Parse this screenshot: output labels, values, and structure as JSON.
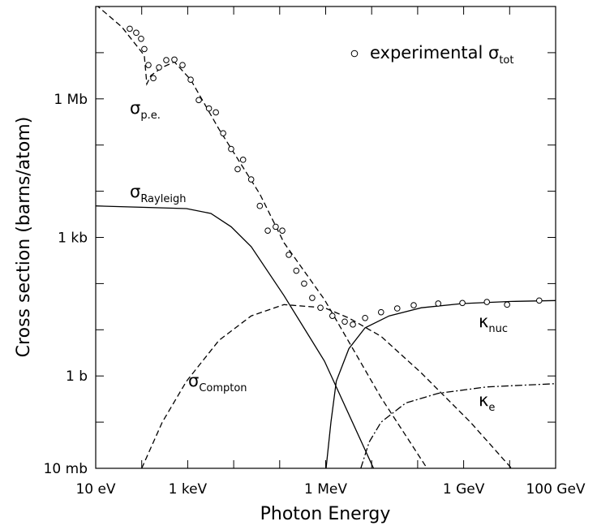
{
  "chart_data": {
    "type": "line",
    "xlabel": "Photon Energy",
    "ylabel": "Cross section (barns/atom)",
    "xscale": "log",
    "yscale": "log",
    "xlim": [
      10,
      100000000000
    ],
    "ylim": [
      0.01,
      100000000
    ],
    "xticks": [
      {
        "value": 10,
        "label": "10 eV"
      },
      {
        "value": 1000,
        "label": "1 keV"
      },
      {
        "value": 1000000,
        "label": "1 MeV"
      },
      {
        "value": 1000000000,
        "label": "1 GeV"
      },
      {
        "value": 100000000000,
        "label": "100 GeV"
      }
    ],
    "xminorticks": [
      100,
      10000,
      100000,
      10000000,
      100000000,
      10000000000
    ],
    "yticks": [
      {
        "value": 0.01,
        "label": "10 mb"
      },
      {
        "value": 1,
        "label": "1 b"
      },
      {
        "value": 1000,
        "label": "1 kb"
      },
      {
        "value": 1000000,
        "label": "1 Mb"
      }
    ],
    "yminorticks": [
      0.1,
      10,
      100,
      10000,
      100000,
      10000000,
      100000000
    ],
    "series": [
      {
        "symbol": "σ",
        "subscript": "p.e.",
        "style": "dashed",
        "color": "#000000",
        "x": [
          10,
          37,
          114,
          129,
          158,
          279,
          514,
          1160,
          4800,
          37000,
          124000,
          940000,
          16000000,
          160000000
        ],
        "values": [
          110000000,
          36000000,
          8700000,
          2100000,
          3200000,
          4800000,
          6300000,
          2600000,
          220000,
          8700,
          770,
          45,
          0.34,
          0.01
        ]
      },
      {
        "symbol": "σ",
        "subscript": "Rayleigh",
        "style": "solid",
        "color": "#000000",
        "x": [
          10,
          940,
          3200,
          8800,
          24000,
          124000,
          940000,
          11000000
        ],
        "values": [
          4800,
          4200,
          3300,
          1700,
          630,
          55,
          2.1,
          0.01
        ]
      },
      {
        "symbol": "σ",
        "subscript": "Compton",
        "style": "dashed",
        "color": "#000000",
        "x": [
          100,
          280,
          940,
          4800,
          24000,
          124000,
          940000,
          3200000,
          16000000,
          120000000,
          1400000000,
          11000000000
        ],
        "values": [
          0.01,
          0.1,
          0.77,
          5.9,
          20,
          35,
          30,
          18,
          7.2,
          1.16,
          0.1,
          0.01
        ]
      },
      {
        "symbol": "κ",
        "subscript": "nuc",
        "style": "solid",
        "color": "#000000",
        "x": [
          1020000,
          1300000,
          1700000,
          3200000,
          7200000,
          24000000,
          120000000,
          940000000,
          11000000000,
          100000000000
        ],
        "values": [
          0.01,
          0.1,
          0.77,
          3.9,
          11,
          20,
          30,
          37,
          41,
          43
        ]
      },
      {
        "symbol": "κ",
        "subscript": "e",
        "style": "dashdot",
        "color": "#000000",
        "x": [
          5800000,
          8800000,
          16000000,
          55000000,
          280000000,
          3200000000,
          100000000000
        ],
        "values": [
          0.01,
          0.037,
          0.1,
          0.26,
          0.42,
          0.58,
          0.68
        ]
      },
      {
        "type": "scatter",
        "name": "experimental",
        "symbol": "σ",
        "subscript": "tot",
        "color": "#000000",
        "x": [
          55,
          76,
          97,
          114,
          140,
          179,
          238,
          342,
          514,
          771,
          1160,
          1740,
          2900,
          4100,
          5900,
          8800,
          12200,
          16000,
          24000,
          37000,
          55000,
          82000,
          114000,
          158000,
          230000,
          340000,
          510000,
          770000,
          1400000,
          2600000,
          3900000,
          7200000,
          16000000,
          36000000,
          82000000,
          280000000,
          940000000,
          3200000000,
          8800000000,
          44000000000
        ],
        "values": [
          33000000,
          27000000,
          20000000,
          12000000,
          5400000,
          2800000,
          4800000,
          6900000,
          7100000,
          5400000,
          2600000,
          940000,
          620000,
          510000,
          180000,
          82000,
          30000,
          48000,
          18000,
          4800,
          1400,
          1700,
          1400,
          420,
          190,
          100,
          49,
          30,
          20,
          15,
          13,
          18,
          24,
          29,
          34,
          37,
          38,
          40,
          35,
          43
        ]
      }
    ]
  }
}
